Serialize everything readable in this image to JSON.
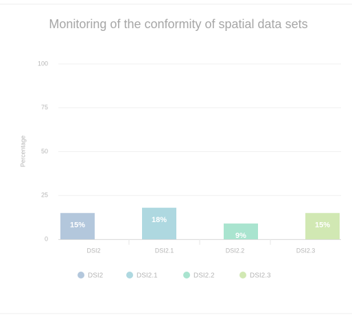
{
  "chart_data": {
    "type": "bar",
    "title": "Monitoring of the conformity of spatial data sets",
    "y_axis_label": "Percentage",
    "categories": [
      "DSI2",
      "DSI2.1",
      "DSI2.2",
      "DSI2.3"
    ],
    "series": [
      {
        "name": "DSI2",
        "color": "#b3c7dc",
        "values": [
          15,
          null,
          null,
          null
        ],
        "value_labels": [
          "15%",
          null,
          null,
          null
        ]
      },
      {
        "name": "DSI2.1",
        "color": "#aed8e0",
        "values": [
          null,
          18,
          null,
          null
        ],
        "value_labels": [
          null,
          "18%",
          null,
          null
        ]
      },
      {
        "name": "DSI2.2",
        "color": "#a9e4cf",
        "values": [
          null,
          null,
          9,
          null
        ],
        "value_labels": [
          null,
          null,
          "9%",
          null
        ]
      },
      {
        "name": "DSI2.3",
        "color": "#d1e8b3",
        "values": [
          null,
          null,
          null,
          15
        ],
        "value_labels": [
          null,
          null,
          null,
          "15%"
        ]
      }
    ],
    "ylim": [
      0,
      100
    ],
    "yticks": [
      0,
      25,
      50,
      75,
      100
    ],
    "grid": true,
    "legend": "bottom"
  }
}
